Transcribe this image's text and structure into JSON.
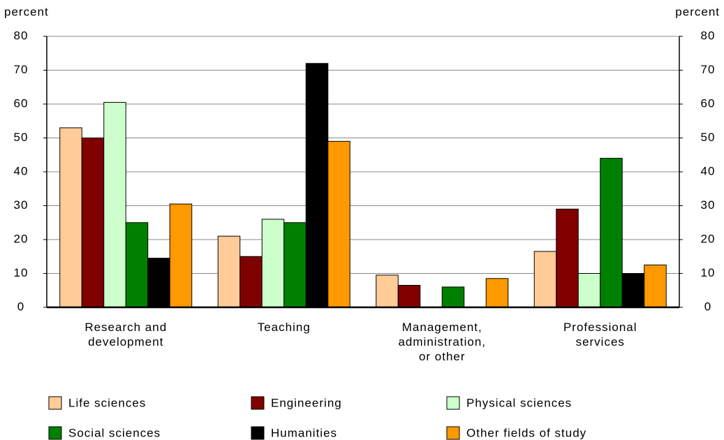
{
  "chart_data": {
    "type": "bar",
    "y_label": "percent",
    "y2_label": "percent",
    "categories": [
      "Research and development",
      "Teaching",
      "Management, administration, or other",
      "Professional services"
    ],
    "series": [
      {
        "name": "Life sciences",
        "color": "#ffcc99",
        "values": [
          53,
          21,
          9.5,
          16.5
        ]
      },
      {
        "name": "Engineering",
        "color": "#800000",
        "values": [
          50,
          15,
          6.5,
          29
        ]
      },
      {
        "name": "Physical sciences",
        "color": "#ccffcc",
        "values": [
          60.5,
          26,
          null,
          10
        ]
      },
      {
        "name": "Social sciences",
        "color": "#008000",
        "values": [
          25,
          25,
          6,
          44
        ]
      },
      {
        "name": "Humanities",
        "color": "#000000",
        "values": [
          14.5,
          72,
          null,
          10
        ]
      },
      {
        "name": "Other fields of study",
        "color": "#ff9900",
        "values": [
          30.5,
          49,
          8.5,
          12.5
        ]
      }
    ],
    "ylim": [
      0,
      80
    ],
    "yticks": [
      0,
      10,
      20,
      30,
      40,
      50,
      60,
      70,
      80
    ],
    "y2lim": [
      0,
      80
    ],
    "y2ticks": [
      0,
      10,
      20,
      30,
      40,
      50,
      60,
      70,
      80
    ],
    "grid": true
  }
}
